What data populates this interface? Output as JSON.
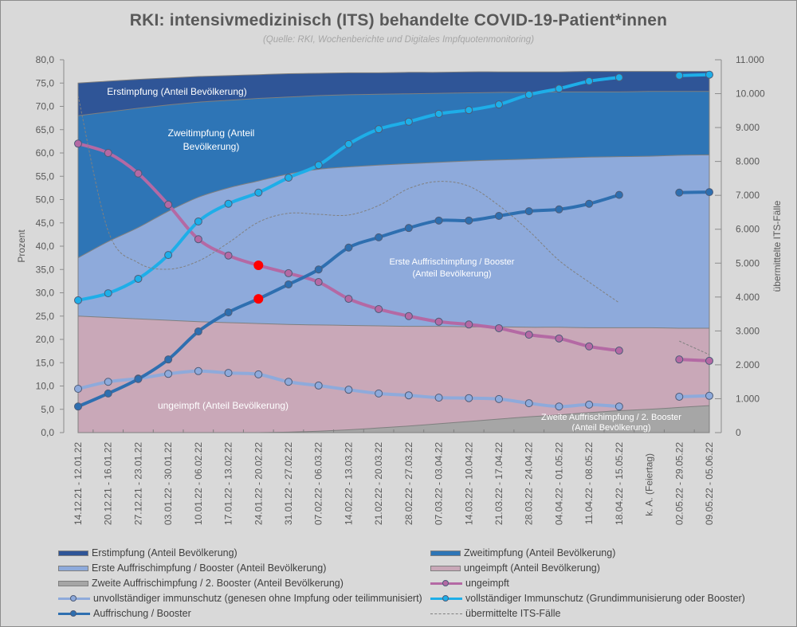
{
  "chart_data": {
    "type": "area",
    "title": "RKI: intensivmedizinisch  (ITS) behandelte  COVID-19-Patient*innen",
    "subtitle": "(Quelle: RKI, Wochenberichte und Digitales Impfquotenmonitoring)",
    "ylabel": "Prozent",
    "y2label": "übermittelte ITS-Fälle",
    "ylim": [
      0,
      80
    ],
    "y2lim": [
      0,
      11000
    ],
    "yticks": [
      "0,0",
      "5,0",
      "10,0",
      "15,0",
      "20,0",
      "25,0",
      "30,0",
      "35,0",
      "40,0",
      "45,0",
      "50,0",
      "55,0",
      "60,0",
      "65,0",
      "70,0",
      "75,0",
      "80,0"
    ],
    "y2ticks": [
      "0",
      "1.000",
      "2.000",
      "3.000",
      "4.000",
      "5.000",
      "6.000",
      "7.000",
      "8.000",
      "9.000",
      "10.000",
      "11.000"
    ],
    "grid": false,
    "legend_position": "bottom",
    "categories": [
      "14.12.21 - 12.01.22",
      "20.12.21 - 16.01.22",
      "27.12.21 - 23.01.22",
      "03.01.22 - 30.01.22",
      "10.01.22 - 06.02.22",
      "17.01.22 - 13.02.22",
      "24.01.22 - 20.02.22",
      "31.01.22 - 27.02.22",
      "07.02.22 - 06.03.22",
      "14.02.22 - 13.03.22",
      "21.02.22 - 20.03.22",
      "28.02.22 - 27.03.22",
      "07.03.22 - 03.04.22",
      "14.03.22 - 10.04.22",
      "21.03.22 - 17.04.22",
      "28.03.22 - 24.04.22",
      "04.04.22 - 01.05.22",
      "11.04.22 - 08.05.22",
      "18.04.22 - 15.05.22",
      "k. A. (Feiertag)",
      "02.05.22 - 29.05.22",
      "09.05.22 - 05.06.22"
    ],
    "stacked_areas": [
      {
        "name": "Zweite Auffrischimpfung / 2. Booster (Anteil Bevölkerung)",
        "color": "#a6a6a6",
        "label": "Zweite Auffrischimpfung / 2. Booster\n(Anteil Bevölkerung)",
        "values": [
          0,
          0,
          0,
          0,
          0,
          0,
          0,
          0.1,
          0.3,
          0.6,
          1.0,
          1.4,
          1.9,
          2.4,
          2.9,
          3.4,
          3.8,
          4.3,
          4.7,
          5.0,
          5.4,
          5.8
        ]
      },
      {
        "name": "ungeimpft (Anteil Bevölkerung)",
        "color": "#c9a8b8",
        "label": "ungeimpft (Anteil Bevölkerung)",
        "values": [
          25.0,
          24.7,
          24.4,
          24.1,
          23.8,
          23.6,
          23.4,
          23.2,
          23.1,
          23.0,
          22.9,
          22.8,
          22.8,
          22.7,
          22.7,
          22.6,
          22.6,
          22.5,
          22.5,
          22.5,
          22.4,
          22.4
        ]
      },
      {
        "name": "Erste Auffrischimpfung / Booster (Anteil Bevölkerung)",
        "color": "#8eaadb",
        "label": "Erste Auffrischimpfung / Booster\n(Anteil Bevölkerung)",
        "values": [
          37.5,
          41.0,
          44.0,
          47.5,
          50.5,
          52.5,
          54.0,
          55.5,
          56.5,
          57.0,
          57.4,
          57.7,
          58.0,
          58.3,
          58.5,
          58.7,
          58.9,
          59.1,
          59.2,
          59.3,
          59.5,
          59.6
        ]
      },
      {
        "name": "Zweitimpfung (Anteil Bevölkerung)",
        "color": "#2e75b6",
        "label": "Zweitimpfung (Anteil\nBevölkerung)",
        "values": [
          68.0,
          68.8,
          69.6,
          70.3,
          70.9,
          71.3,
          71.7,
          72.0,
          72.3,
          72.5,
          72.6,
          72.7,
          72.8,
          72.9,
          73.0,
          73.0,
          73.1,
          73.1,
          73.1,
          73.2,
          73.2,
          73.2
        ]
      },
      {
        "name": "Erstimpfung (Anteil Bevölkerung)",
        "color": "#2f5597",
        "label": "Erstimpfung (Anteil Bevölkerung)",
        "values": [
          75.0,
          75.4,
          75.8,
          76.1,
          76.4,
          76.6,
          76.8,
          77.0,
          77.1,
          77.2,
          77.2,
          77.3,
          77.3,
          77.4,
          77.4,
          77.4,
          77.4,
          77.5,
          77.5,
          77.5,
          77.5,
          77.5
        ]
      }
    ],
    "series": [
      {
        "name": "unvollständiger immunschutz (genesen ohne Impfung oder teilimmunisiert)",
        "color": "#8eaadb",
        "marker": "circle",
        "axis": "left",
        "values": [
          9.4,
          10.9,
          11.6,
          12.6,
          13.2,
          12.8,
          12.5,
          10.9,
          10.1,
          9.2,
          8.4,
          8.0,
          7.5,
          7.4,
          7.2,
          6.3,
          5.6,
          6.0,
          5.6,
          null,
          7.7,
          7.9
        ]
      },
      {
        "name": "ungeimpft",
        "color": "#b469a4",
        "marker": "circle",
        "axis": "left",
        "values": [
          62.0,
          60.0,
          55.6,
          48.9,
          41.5,
          38.0,
          35.9,
          34.2,
          32.3,
          28.7,
          26.5,
          25.0,
          23.8,
          23.2,
          22.4,
          21.0,
          20.2,
          18.5,
          17.6,
          null,
          15.7,
          15.4
        ],
        "highlighted_index": 6,
        "highlight_color": "#ff0000"
      },
      {
        "name": "vollständiger Immunschutz (Grundimmunisierung oder Booster)",
        "color": "#1eaee8",
        "marker": "circle",
        "axis": "left",
        "values": [
          28.4,
          29.9,
          33.0,
          38.1,
          45.3,
          49.1,
          51.5,
          54.7,
          57.4,
          61.9,
          65.1,
          66.7,
          68.4,
          69.2,
          70.4,
          72.5,
          73.8,
          75.4,
          76.2,
          null,
          76.6,
          76.8
        ]
      },
      {
        "name": "Auffrischung / Booster",
        "color": "#2e6fb0",
        "marker": "circle",
        "axis": "left",
        "values": [
          5.6,
          8.4,
          11.5,
          15.7,
          21.7,
          25.8,
          28.7,
          31.8,
          35.0,
          39.7,
          41.9,
          43.9,
          45.5,
          45.5,
          46.5,
          47.5,
          47.9,
          49.1,
          51.0,
          null,
          51.5,
          51.6
        ],
        "highlighted_index": 6,
        "highlight_color": "#ff0000"
      },
      {
        "name": "übermittelte ITS-Fälle",
        "color": "#808080",
        "style": "dashed",
        "axis": "right",
        "values": [
          9940,
          5950,
          5010,
          4820,
          5060,
          5600,
          6210,
          6470,
          6440,
          6420,
          6700,
          7200,
          7410,
          7270,
          6700,
          5950,
          5080,
          4440,
          3830,
          null,
          2700,
          2300
        ]
      }
    ]
  },
  "legend": [
    {
      "label": "Erstimpfung (Anteil Bevölkerung)",
      "kind": "swatch",
      "color": "#2f5597"
    },
    {
      "label": "Zweitimpfung (Anteil Bevölkerung)",
      "kind": "swatch",
      "color": "#2e75b6"
    },
    {
      "label": "Erste Auffrischimpfung / Booster (Anteil Bevölkerung)",
      "kind": "swatch",
      "color": "#8eaadb"
    },
    {
      "label": "ungeimpft (Anteil Bevölkerung)",
      "kind": "swatch",
      "color": "#c9a8b8"
    },
    {
      "label": "Zweite Auffrischimpfung / 2. Booster (Anteil Bevölkerung)",
      "kind": "swatch",
      "color": "#a6a6a6"
    },
    {
      "label": "ungeimpft",
      "kind": "line",
      "color": "#b469a4"
    },
    {
      "label": "unvollständiger immunschutz (genesen ohne Impfung oder teilimmunisiert)",
      "kind": "line",
      "color": "#8eaadb"
    },
    {
      "label": "vollständiger Immunschutz (Grundimmunisierung oder Booster)",
      "kind": "line",
      "color": "#1eaee8"
    },
    {
      "label": "Auffrischung / Booster",
      "kind": "line",
      "color": "#2e6fb0"
    },
    {
      "label": "übermittelte ITS-Fälle",
      "kind": "dash",
      "color": "#808080"
    }
  ]
}
